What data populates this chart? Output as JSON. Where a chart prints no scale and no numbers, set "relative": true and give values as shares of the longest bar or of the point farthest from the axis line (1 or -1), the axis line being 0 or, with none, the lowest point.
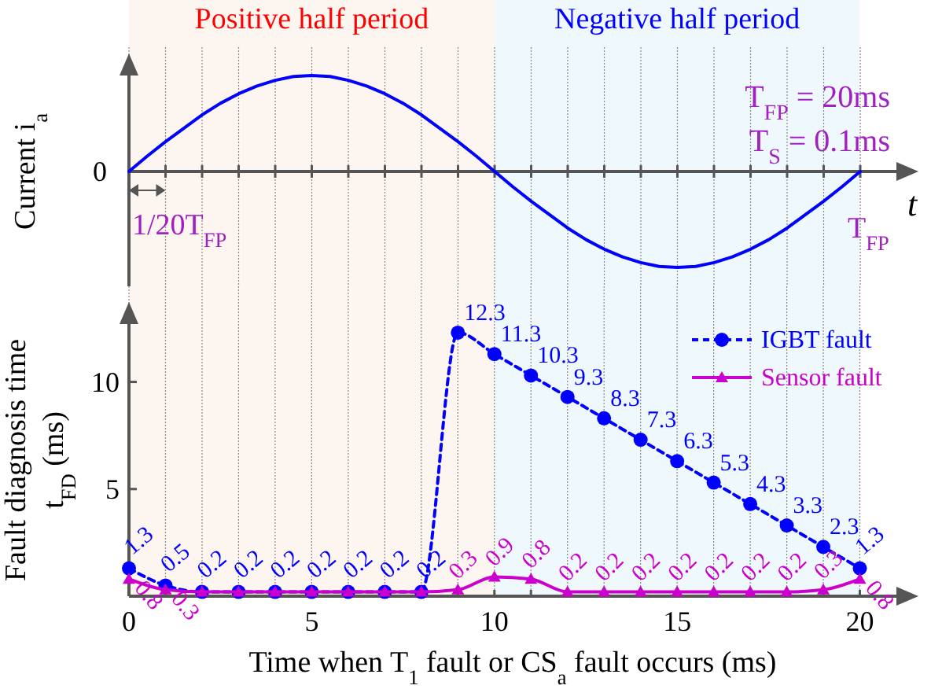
{
  "chart_data": [
    {
      "type": "line",
      "relative": true,
      "ylabel": "Current i$_{a}$",
      "xlabel": "t",
      "grid": "x",
      "categories": [
        null,
        null,
        null,
        null,
        null,
        null,
        null,
        null,
        null,
        null,
        null,
        null,
        null,
        null,
        null,
        null,
        null,
        null,
        null,
        null,
        null,
        null,
        null,
        null,
        null,
        null,
        null,
        null,
        null,
        null,
        null,
        null,
        null,
        null,
        null,
        null,
        null,
        null,
        null,
        null,
        null
      ],
      "series": [
        {
          "color": "#0000ff",
          "values": [
            0,
            0.16,
            0.31,
            0.45,
            0.59,
            0.71,
            0.81,
            0.89,
            0.95,
            0.99,
            1,
            0.99,
            0.95,
            0.89,
            0.81,
            0.71,
            0.59,
            0.45,
            0.31,
            0.16,
            0,
            -0.16,
            -0.31,
            -0.45,
            -0.59,
            -0.71,
            -0.81,
            -0.89,
            -0.95,
            -0.99,
            -1,
            -0.99,
            -0.95,
            -0.89,
            -0.81,
            -0.71,
            -0.59,
            -0.45,
            -0.31,
            -0.16,
            0
          ]
        }
      ],
      "annotations": [
        "0",
        "1/20T$_{FP}$",
        "T$_{FP}$",
        "T$_{FP}$ = 20ms",
        "T$_{S}$ = 0.1ms"
      ]
    },
    {
      "type": "line",
      "xlabel": "Time when T$_{1}$ fault or CS$_{a}$ fault occurs (ms)",
      "ylabel": "Fault diagnosis time\nt$_{FD}$ (ms)",
      "xlim": [
        0,
        21
      ],
      "ylim": [
        0,
        12.7
      ],
      "yticks": [
        5,
        10
      ],
      "xticks": [
        0,
        {
          "value": 1,
          "label": null
        },
        {
          "value": 2,
          "label": null
        },
        {
          "value": 3,
          "label": null
        },
        {
          "value": 4,
          "label": null
        },
        5,
        {
          "value": 6,
          "label": null
        },
        {
          "value": 7,
          "label": null
        },
        {
          "value": 8,
          "label": null
        },
        {
          "value": 9,
          "label": null
        },
        10,
        {
          "value": 11,
          "label": null
        },
        {
          "value": 12,
          "label": null
        },
        {
          "value": 13,
          "label": null
        },
        {
          "value": 14,
          "label": null
        },
        15,
        {
          "value": 16,
          "label": null
        },
        {
          "value": 17,
          "label": null
        },
        {
          "value": 18,
          "label": null
        },
        {
          "value": 19,
          "label": null
        },
        20
      ],
      "grid": "x",
      "legend": "top right",
      "x": [
        0,
        1,
        2,
        3,
        4,
        5,
        6,
        7,
        8,
        9,
        10,
        11,
        12,
        13,
        14,
        15,
        16,
        17,
        18,
        19,
        20
      ],
      "series": [
        {
          "name": "IGBT fault",
          "color": "#0000ff",
          "marker": "circle",
          "line_style": "dashed",
          "values": [
            1.3,
            0.5,
            0.2,
            0.2,
            0.2,
            0.2,
            0.2,
            0.2,
            0.2,
            12.3,
            11.3,
            10.3,
            9.3,
            8.3,
            7.3,
            6.3,
            5.3,
            4.3,
            3.3,
            2.3,
            1.3
          ],
          "value_labels": [
            "1.3",
            "0.5",
            "0.2",
            "0.2",
            "0.2",
            "0.2",
            "0.2",
            "0.2",
            "0.2",
            "12.3",
            "11.3",
            "10.3",
            "9.3",
            "8.3",
            "7.3",
            "6.3",
            "5.3",
            "4.3",
            "3.3",
            "2.3",
            "1.3"
          ]
        },
        {
          "name": "Sensor fault",
          "color": "#cc00cc",
          "marker": "triangle",
          "line_style": "solid",
          "values": [
            0.8,
            0.3,
            0.2,
            0.2,
            0.2,
            0.2,
            0.2,
            0.2,
            0.2,
            0.3,
            0.9,
            0.8,
            0.2,
            0.2,
            0.2,
            0.2,
            0.2,
            0.2,
            0.2,
            0.3,
            0.8
          ],
          "value_labels": [
            "0.8",
            "0.3",
            null,
            null,
            null,
            null,
            null,
            null,
            null,
            "0.3",
            "0.9",
            "0.8",
            "0.2",
            "0.2",
            "0.2",
            "0.2",
            "0.2",
            "0.2",
            "0.2",
            "0.3",
            "0.8"
          ]
        }
      ],
      "bands": [
        {
          "axis": "x",
          "from": 0,
          "to": 10,
          "label": "Positive half period",
          "color": "#fdf5ef"
        },
        {
          "axis": "x",
          "from": 10,
          "to": 20,
          "label": "Negative half period",
          "color": "#eef8fd"
        }
      ]
    }
  ]
}
